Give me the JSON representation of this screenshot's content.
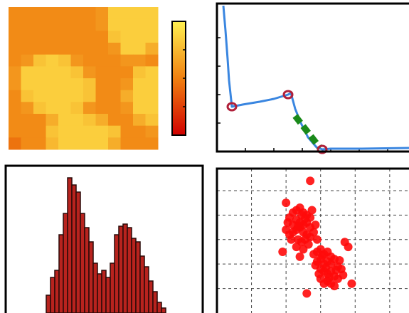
{
  "chart_data": [
    {
      "type": "heatmap",
      "values": [
        [
          0.55,
          0.55,
          0.55,
          0.55,
          0.55,
          0.55,
          0.55,
          0.6,
          0.85,
          0.85,
          0.85,
          0.85
        ],
        [
          0.55,
          0.55,
          0.55,
          0.55,
          0.55,
          0.55,
          0.55,
          0.6,
          0.85,
          0.85,
          0.85,
          0.85
        ],
        [
          0.55,
          0.55,
          0.55,
          0.55,
          0.55,
          0.55,
          0.55,
          0.55,
          0.8,
          0.85,
          0.85,
          0.85
        ],
        [
          0.55,
          0.55,
          0.55,
          0.55,
          0.55,
          0.55,
          0.55,
          0.55,
          0.6,
          0.85,
          0.85,
          0.7
        ],
        [
          0.55,
          0.6,
          0.8,
          0.85,
          0.8,
          0.6,
          0.55,
          0.55,
          0.55,
          0.6,
          0.6,
          0.55
        ],
        [
          0.6,
          0.85,
          0.85,
          0.85,
          0.85,
          0.8,
          0.6,
          0.55,
          0.55,
          0.55,
          0.8,
          0.85
        ],
        [
          0.6,
          0.85,
          0.85,
          0.85,
          0.85,
          0.85,
          0.8,
          0.55,
          0.55,
          0.6,
          0.85,
          0.85
        ],
        [
          0.55,
          0.8,
          0.85,
          0.85,
          0.85,
          0.85,
          0.8,
          0.55,
          0.55,
          0.7,
          0.85,
          0.85
        ],
        [
          0.55,
          0.6,
          0.8,
          0.85,
          0.85,
          0.8,
          0.6,
          0.55,
          0.55,
          0.6,
          0.85,
          0.85
        ],
        [
          0.55,
          0.55,
          0.55,
          0.7,
          0.85,
          0.85,
          0.8,
          0.7,
          0.55,
          0.55,
          0.7,
          0.8
        ],
        [
          0.55,
          0.55,
          0.55,
          0.8,
          0.85,
          0.85,
          0.85,
          0.85,
          0.8,
          0.55,
          0.55,
          0.6
        ],
        [
          0.45,
          0.55,
          0.55,
          0.75,
          0.85,
          0.85,
          0.85,
          0.85,
          0.7,
          0.55,
          0.55,
          0.55
        ]
      ],
      "colormap": [
        "#d00000",
        "#f08010",
        "#fff050"
      ],
      "clim": [
        0,
        1
      ],
      "cticks": [
        0,
        0.25,
        0.5,
        0.75,
        1
      ]
    },
    {
      "type": "line",
      "xlim": [
        0,
        280
      ],
      "ylim": [
        0,
        208
      ],
      "xticks": [
        40,
        80,
        120,
        160,
        200,
        240
      ],
      "yticks": [
        40,
        80,
        120,
        160
      ],
      "series": [
        {
          "color": "#3a86e0",
          "width": 3,
          "x": [
            9,
            12,
            15,
            17,
            21,
            36,
            60,
            80,
            100,
            104,
            110,
            118,
            128,
            140,
            148,
            160,
            200,
            270
          ],
          "values": [
            205,
            170,
            130,
            100,
            63,
            66,
            70,
            74,
            80,
            82,
            60,
            40,
            20,
            6,
            3,
            4,
            4,
            5
          ]
        },
        {
          "color": "#1a8a1a",
          "width": 9,
          "dash": true,
          "x": [
            110,
            145
          ],
          "values": [
            50,
            5
          ]
        },
        {
          "color": "#b0203a",
          "marker": "circle",
          "x": [
            21,
            100,
            148
          ],
          "values": [
            63,
            80,
            3
          ]
        }
      ]
    },
    {
      "type": "histogram",
      "xlim": [
        0,
        277
      ],
      "ylim": [
        0,
        207
      ],
      "bins": [
        57,
        63,
        69,
        75,
        81,
        87,
        93,
        99,
        105,
        111,
        117,
        123,
        129,
        135,
        141,
        147,
        153,
        159,
        165,
        171,
        177,
        183,
        189,
        195,
        201,
        207,
        213,
        219,
        225
      ],
      "values": [
        25,
        50,
        60,
        110,
        140,
        190,
        180,
        170,
        140,
        120,
        100,
        70,
        55,
        60,
        50,
        70,
        110,
        122,
        125,
        120,
        105,
        100,
        80,
        65,
        45,
        30,
        15,
        7
      ],
      "color": "#b8231e",
      "edgecolor": "#2a0a08"
    },
    {
      "type": "scatter",
      "xlim": [
        0,
        5.6
      ],
      "ylim": [
        0,
        5.9
      ],
      "xticks": [
        1,
        2,
        3,
        4,
        5
      ],
      "yticks": [
        1,
        2,
        3,
        4,
        5
      ],
      "grid": true,
      "color": "#ff0a0a",
      "x": [
        2.1,
        2.2,
        2.3,
        2.4,
        2.5,
        2.6,
        2.7,
        2.2,
        2.3,
        2.4,
        2.5,
        2.6,
        2.7,
        2.8,
        2.0,
        2.1,
        2.2,
        2.3,
        2.4,
        2.5,
        2.6,
        2.7,
        2.35,
        2.45,
        2.55,
        2.65,
        2.3,
        2.5,
        2.15,
        2.85,
        2.45,
        2.35,
        2.55,
        2.9,
        2.05,
        2.75,
        2.8,
        2.9,
        3.0,
        3.1,
        3.2,
        3.3,
        3.4,
        2.9,
        3.0,
        3.1,
        3.2,
        3.3,
        3.5,
        3.6,
        3.0,
        3.1,
        3.2,
        3.3,
        3.4,
        3.5,
        3.2,
        3.3,
        3.0,
        3.1,
        2.95,
        3.45,
        3.55,
        2.85,
        3.15,
        3.25,
        3.65,
        3.05,
        3.4,
        2.7,
        2.0,
        3.8,
        1.9,
        2.6,
        3.9,
        2.4,
        3.7
      ],
      "values": [
        3.9,
        4.1,
        4.2,
        4.3,
        4.1,
        4.0,
        3.9,
        3.6,
        3.8,
        3.7,
        3.6,
        3.7,
        3.5,
        3.3,
        3.4,
        3.2,
        3.3,
        3.4,
        3.5,
        3.3,
        3.2,
        3.1,
        3.0,
        2.9,
        3.0,
        2.8,
        2.7,
        2.6,
        3.0,
        3.6,
        4.0,
        3.55,
        3.85,
        3.0,
        3.7,
        4.2,
        2.4,
        2.5,
        2.6,
        2.4,
        2.5,
        2.3,
        2.2,
        2.1,
        2.2,
        2.0,
        2.1,
        2.0,
        1.9,
        1.8,
        1.8,
        1.7,
        1.6,
        1.7,
        1.5,
        1.4,
        1.3,
        1.2,
        1.4,
        1.2,
        1.6,
        1.75,
        2.15,
        1.95,
        1.85,
        1.45,
        1.55,
        2.35,
        1.1,
        5.4,
        4.5,
        2.7,
        2.5,
        0.8,
        1.2,
        2.3,
        2.9
      ]
    }
  ]
}
